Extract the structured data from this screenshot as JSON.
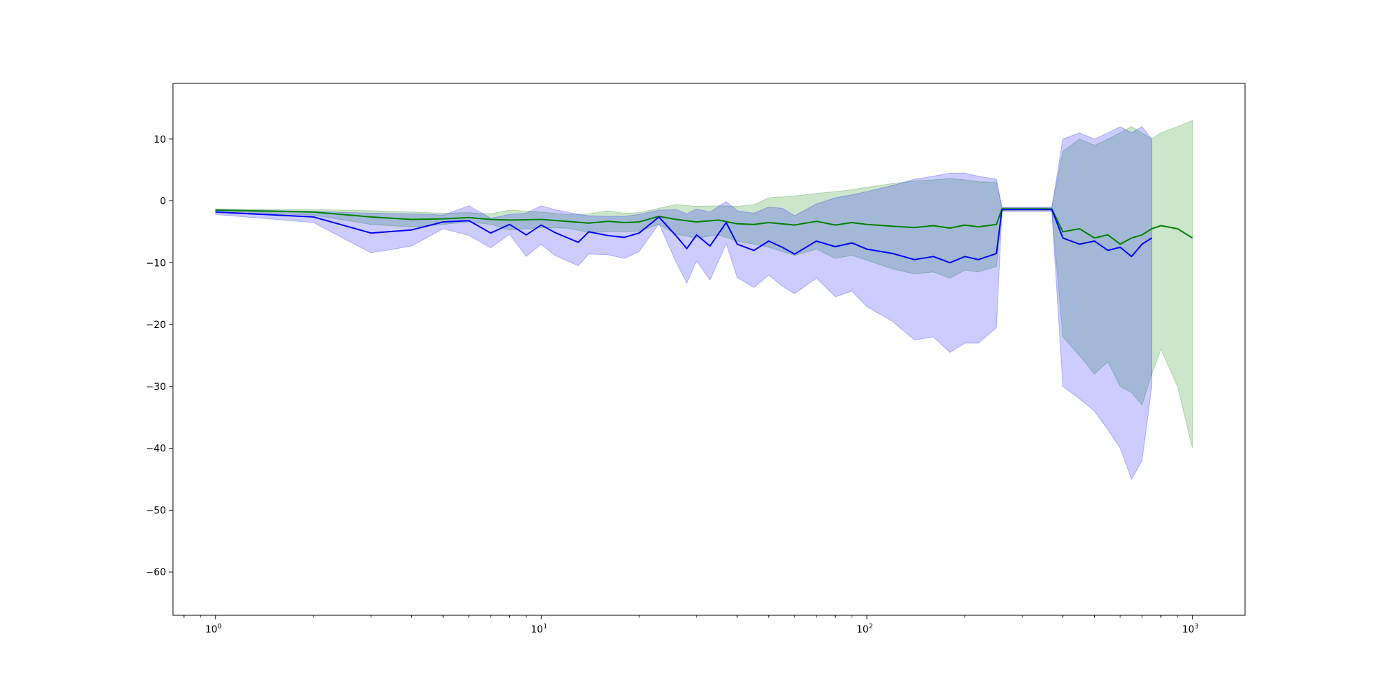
{
  "chart_data": {
    "type": "line",
    "title": "",
    "xlabel": "",
    "ylabel": "",
    "x_scale": "log",
    "xlim": [
      0.74,
      1450
    ],
    "ylim": [
      -67,
      19
    ],
    "grid": false,
    "legend": "none",
    "x_ticks": [
      {
        "value": 1,
        "base": "10",
        "exp": "0"
      },
      {
        "value": 10,
        "base": "10",
        "exp": "1"
      },
      {
        "value": 100,
        "base": "10",
        "exp": "2"
      },
      {
        "value": 1000,
        "base": "10",
        "exp": "3"
      }
    ],
    "y_ticks": [
      {
        "value": 10,
        "label": "10"
      },
      {
        "value": 0,
        "label": "0"
      },
      {
        "value": -10,
        "label": "−10"
      },
      {
        "value": -20,
        "label": "−20"
      },
      {
        "value": -30,
        "label": "−30"
      },
      {
        "value": -40,
        "label": "−40"
      },
      {
        "value": -50,
        "label": "−50"
      },
      {
        "value": -60,
        "label": "−60"
      }
    ],
    "series": [
      {
        "color": "#008000",
        "band_color": "#008000",
        "points": [
          [
            1,
            -1.5,
            -1.3,
            -1.8
          ],
          [
            2,
            -1.8,
            -1.4,
            -2.3
          ],
          [
            3,
            -2.6,
            -1.6,
            -3.8
          ],
          [
            4,
            -3.0,
            -1.8,
            -4.2
          ],
          [
            5,
            -2.9,
            -2.0,
            -3.8
          ],
          [
            6,
            -2.7,
            -1.9,
            -3.4
          ],
          [
            7,
            -3.0,
            -2.1,
            -3.8
          ],
          [
            8,
            -3.1,
            -1.5,
            -4.7
          ],
          [
            10,
            -3.0,
            -1.8,
            -4.3
          ],
          [
            12,
            -3.3,
            -2.2,
            -4.4
          ],
          [
            14,
            -3.6,
            -2.1,
            -5.1
          ],
          [
            16,
            -3.3,
            -1.6,
            -5.0
          ],
          [
            18,
            -3.5,
            -2.0,
            -5.0
          ],
          [
            20,
            -3.4,
            -1.9,
            -4.9
          ],
          [
            23,
            -2.5,
            -1.2,
            -3.8
          ],
          [
            26,
            -3.0,
            -0.6,
            -5.4
          ],
          [
            30,
            -3.4,
            -0.9,
            -6.0
          ],
          [
            35,
            -3.1,
            -0.8,
            -5.5
          ],
          [
            40,
            -3.7,
            -0.9,
            -6.5
          ],
          [
            45,
            -3.8,
            -0.6,
            -7.0
          ],
          [
            50,
            -3.5,
            0.5,
            -7.5
          ],
          [
            60,
            -3.9,
            0.8,
            -8.8
          ],
          [
            70,
            -3.3,
            1.2,
            -7.8
          ],
          [
            80,
            -3.9,
            1.5,
            -9.3
          ],
          [
            90,
            -3.5,
            1.8,
            -8.8
          ],
          [
            100,
            -3.8,
            2.2,
            -9.6
          ],
          [
            120,
            -4.1,
            2.8,
            -11.0
          ],
          [
            140,
            -4.3,
            3.2,
            -11.8
          ],
          [
            160,
            -4.0,
            3.4,
            -11.5
          ],
          [
            180,
            -4.4,
            3.6,
            -12.5
          ],
          [
            200,
            -3.9,
            3.4,
            -11.2
          ],
          [
            220,
            -4.2,
            3.1,
            -11.5
          ],
          [
            250,
            -3.8,
            3.0,
            -10.6
          ],
          [
            260,
            -1.3,
            -1.0,
            -1.6
          ],
          [
            300,
            -1.3,
            -1.0,
            -1.6
          ],
          [
            350,
            -1.3,
            -1.0,
            -1.6
          ],
          [
            370,
            -1.3,
            -1.0,
            -1.6
          ],
          [
            400,
            -5.0,
            8.0,
            -22.0
          ],
          [
            450,
            -4.5,
            10.0,
            -25.0
          ],
          [
            500,
            -6.0,
            9.0,
            -28.0
          ],
          [
            550,
            -5.5,
            10.0,
            -26.0
          ],
          [
            600,
            -7.0,
            11.0,
            -30.0
          ],
          [
            650,
            -6.0,
            12.0,
            -31.0
          ],
          [
            700,
            -5.5,
            11.0,
            -33.0
          ],
          [
            750,
            -4.5,
            10.0,
            -28.0
          ],
          [
            800,
            -4.0,
            11.0,
            -24.0
          ],
          [
            900,
            -4.5,
            12.0,
            -30.0
          ],
          [
            1000,
            -6.0,
            13.0,
            -40.0
          ]
        ]
      },
      {
        "color": "#0000ff",
        "band_color": "#0000ff",
        "points": [
          [
            1,
            -1.8,
            -1.4,
            -2.2
          ],
          [
            2,
            -2.6,
            -1.7,
            -3.5
          ],
          [
            3,
            -5.2,
            -2.0,
            -8.4
          ],
          [
            4,
            -4.7,
            -2.1,
            -7.3
          ],
          [
            5,
            -3.4,
            -2.3,
            -4.5
          ],
          [
            6,
            -3.2,
            -0.8,
            -5.6
          ],
          [
            7,
            -5.2,
            -2.8,
            -7.6
          ],
          [
            8,
            -3.8,
            -2.2,
            -5.4
          ],
          [
            9,
            -5.5,
            -2.0,
            -9.0
          ],
          [
            10,
            -3.9,
            -0.8,
            -7.0
          ],
          [
            11,
            -5.1,
            -1.4,
            -8.8
          ],
          [
            13,
            -6.7,
            -2.2,
            -10.5
          ],
          [
            14,
            -5.0,
            -2.4,
            -8.6
          ],
          [
            16,
            -5.6,
            -2.5,
            -8.7
          ],
          [
            18,
            -5.9,
            -2.5,
            -9.3
          ],
          [
            20,
            -5.2,
            -2.2,
            -8.2
          ],
          [
            23,
            -2.6,
            -1.5,
            -3.7
          ],
          [
            26,
            -5.7,
            -1.4,
            -10.0
          ],
          [
            28,
            -7.7,
            -2.1,
            -13.3
          ],
          [
            30,
            -5.5,
            -1.3,
            -9.7
          ],
          [
            33,
            -7.3,
            -1.8,
            -12.8
          ],
          [
            37,
            -3.5,
            -0.1,
            -6.9
          ],
          [
            40,
            -7.0,
            -1.6,
            -12.4
          ],
          [
            45,
            -8.0,
            -2.0,
            -14.0
          ],
          [
            50,
            -6.5,
            -1.0,
            -12.0
          ],
          [
            55,
            -7.5,
            -1.2,
            -13.8
          ],
          [
            60,
            -8.6,
            -2.4,
            -15.0
          ],
          [
            70,
            -6.5,
            -0.5,
            -12.5
          ],
          [
            80,
            -7.4,
            0.5,
            -15.5
          ],
          [
            90,
            -6.8,
            1.0,
            -14.6
          ],
          [
            100,
            -7.8,
            1.5,
            -17.1
          ],
          [
            120,
            -8.5,
            2.5,
            -19.5
          ],
          [
            140,
            -9.5,
            3.5,
            -22.5
          ],
          [
            160,
            -9.0,
            4.0,
            -22.0
          ],
          [
            180,
            -10.0,
            4.5,
            -24.5
          ],
          [
            200,
            -9.0,
            4.5,
            -23.0
          ],
          [
            220,
            -9.5,
            4.0,
            -23.0
          ],
          [
            250,
            -8.5,
            3.5,
            -20.5
          ],
          [
            260,
            -1.4,
            -1.1,
            -1.7
          ],
          [
            300,
            -1.4,
            -1.1,
            -1.7
          ],
          [
            350,
            -1.4,
            -1.1,
            -1.7
          ],
          [
            370,
            -1.4,
            -1.1,
            -1.7
          ],
          [
            400,
            -6.0,
            10.0,
            -30.0
          ],
          [
            450,
            -7.0,
            11.0,
            -32.0
          ],
          [
            500,
            -6.5,
            10.0,
            -34.0
          ],
          [
            550,
            -8.0,
            11.0,
            -37.0
          ],
          [
            600,
            -7.5,
            12.0,
            -40.0
          ],
          [
            650,
            -9.0,
            11.0,
            -45.0
          ],
          [
            700,
            -7.0,
            12.0,
            -42.0
          ],
          [
            750,
            -6.0,
            10.0,
            -30.0
          ]
        ]
      }
    ]
  }
}
